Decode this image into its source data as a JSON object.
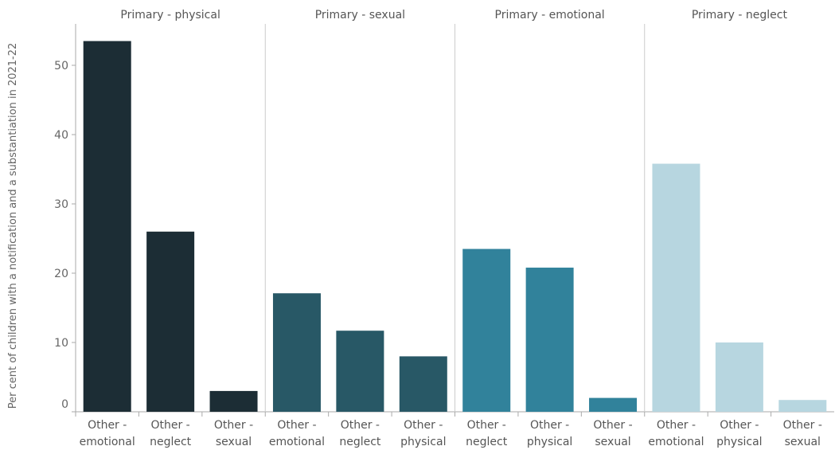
{
  "chart_data": {
    "type": "bar",
    "ylabel": "Per cent of children with a notification and a substantiation in 2021-22",
    "xlabel": "",
    "ylim": [
      0,
      56
    ],
    "yticks": [
      0,
      10,
      20,
      30,
      40,
      50
    ],
    "grid": false,
    "legend": "none",
    "panels": [
      {
        "name": "Primary - physical",
        "color": "#1c2d35",
        "categories": [
          [
            "Other -",
            "emotional"
          ],
          [
            "Other -",
            "neglect"
          ],
          [
            "Other -",
            "sexual"
          ]
        ],
        "values": [
          53.5,
          26.0,
          3.0
        ]
      },
      {
        "name": "Primary - sexual",
        "color": "#285866",
        "categories": [
          [
            "Other -",
            "emotional"
          ],
          [
            "Other -",
            "neglect"
          ],
          [
            "Other -",
            "physical"
          ]
        ],
        "values": [
          17.1,
          11.7,
          8.0
        ]
      },
      {
        "name": "Primary - emotional",
        "color": "#31829b",
        "categories": [
          [
            "Other -",
            "neglect"
          ],
          [
            "Other -",
            "physical"
          ],
          [
            "Other -",
            "sexual"
          ]
        ],
        "values": [
          23.5,
          20.8,
          2.0
        ]
      },
      {
        "name": "Primary - neglect",
        "color": "#b7d6e0",
        "categories": [
          [
            "Other -",
            "emotional"
          ],
          [
            "Other -",
            "physical"
          ],
          [
            "Other -",
            "sexual"
          ]
        ],
        "values": [
          35.8,
          10.0,
          1.7
        ]
      }
    ]
  }
}
